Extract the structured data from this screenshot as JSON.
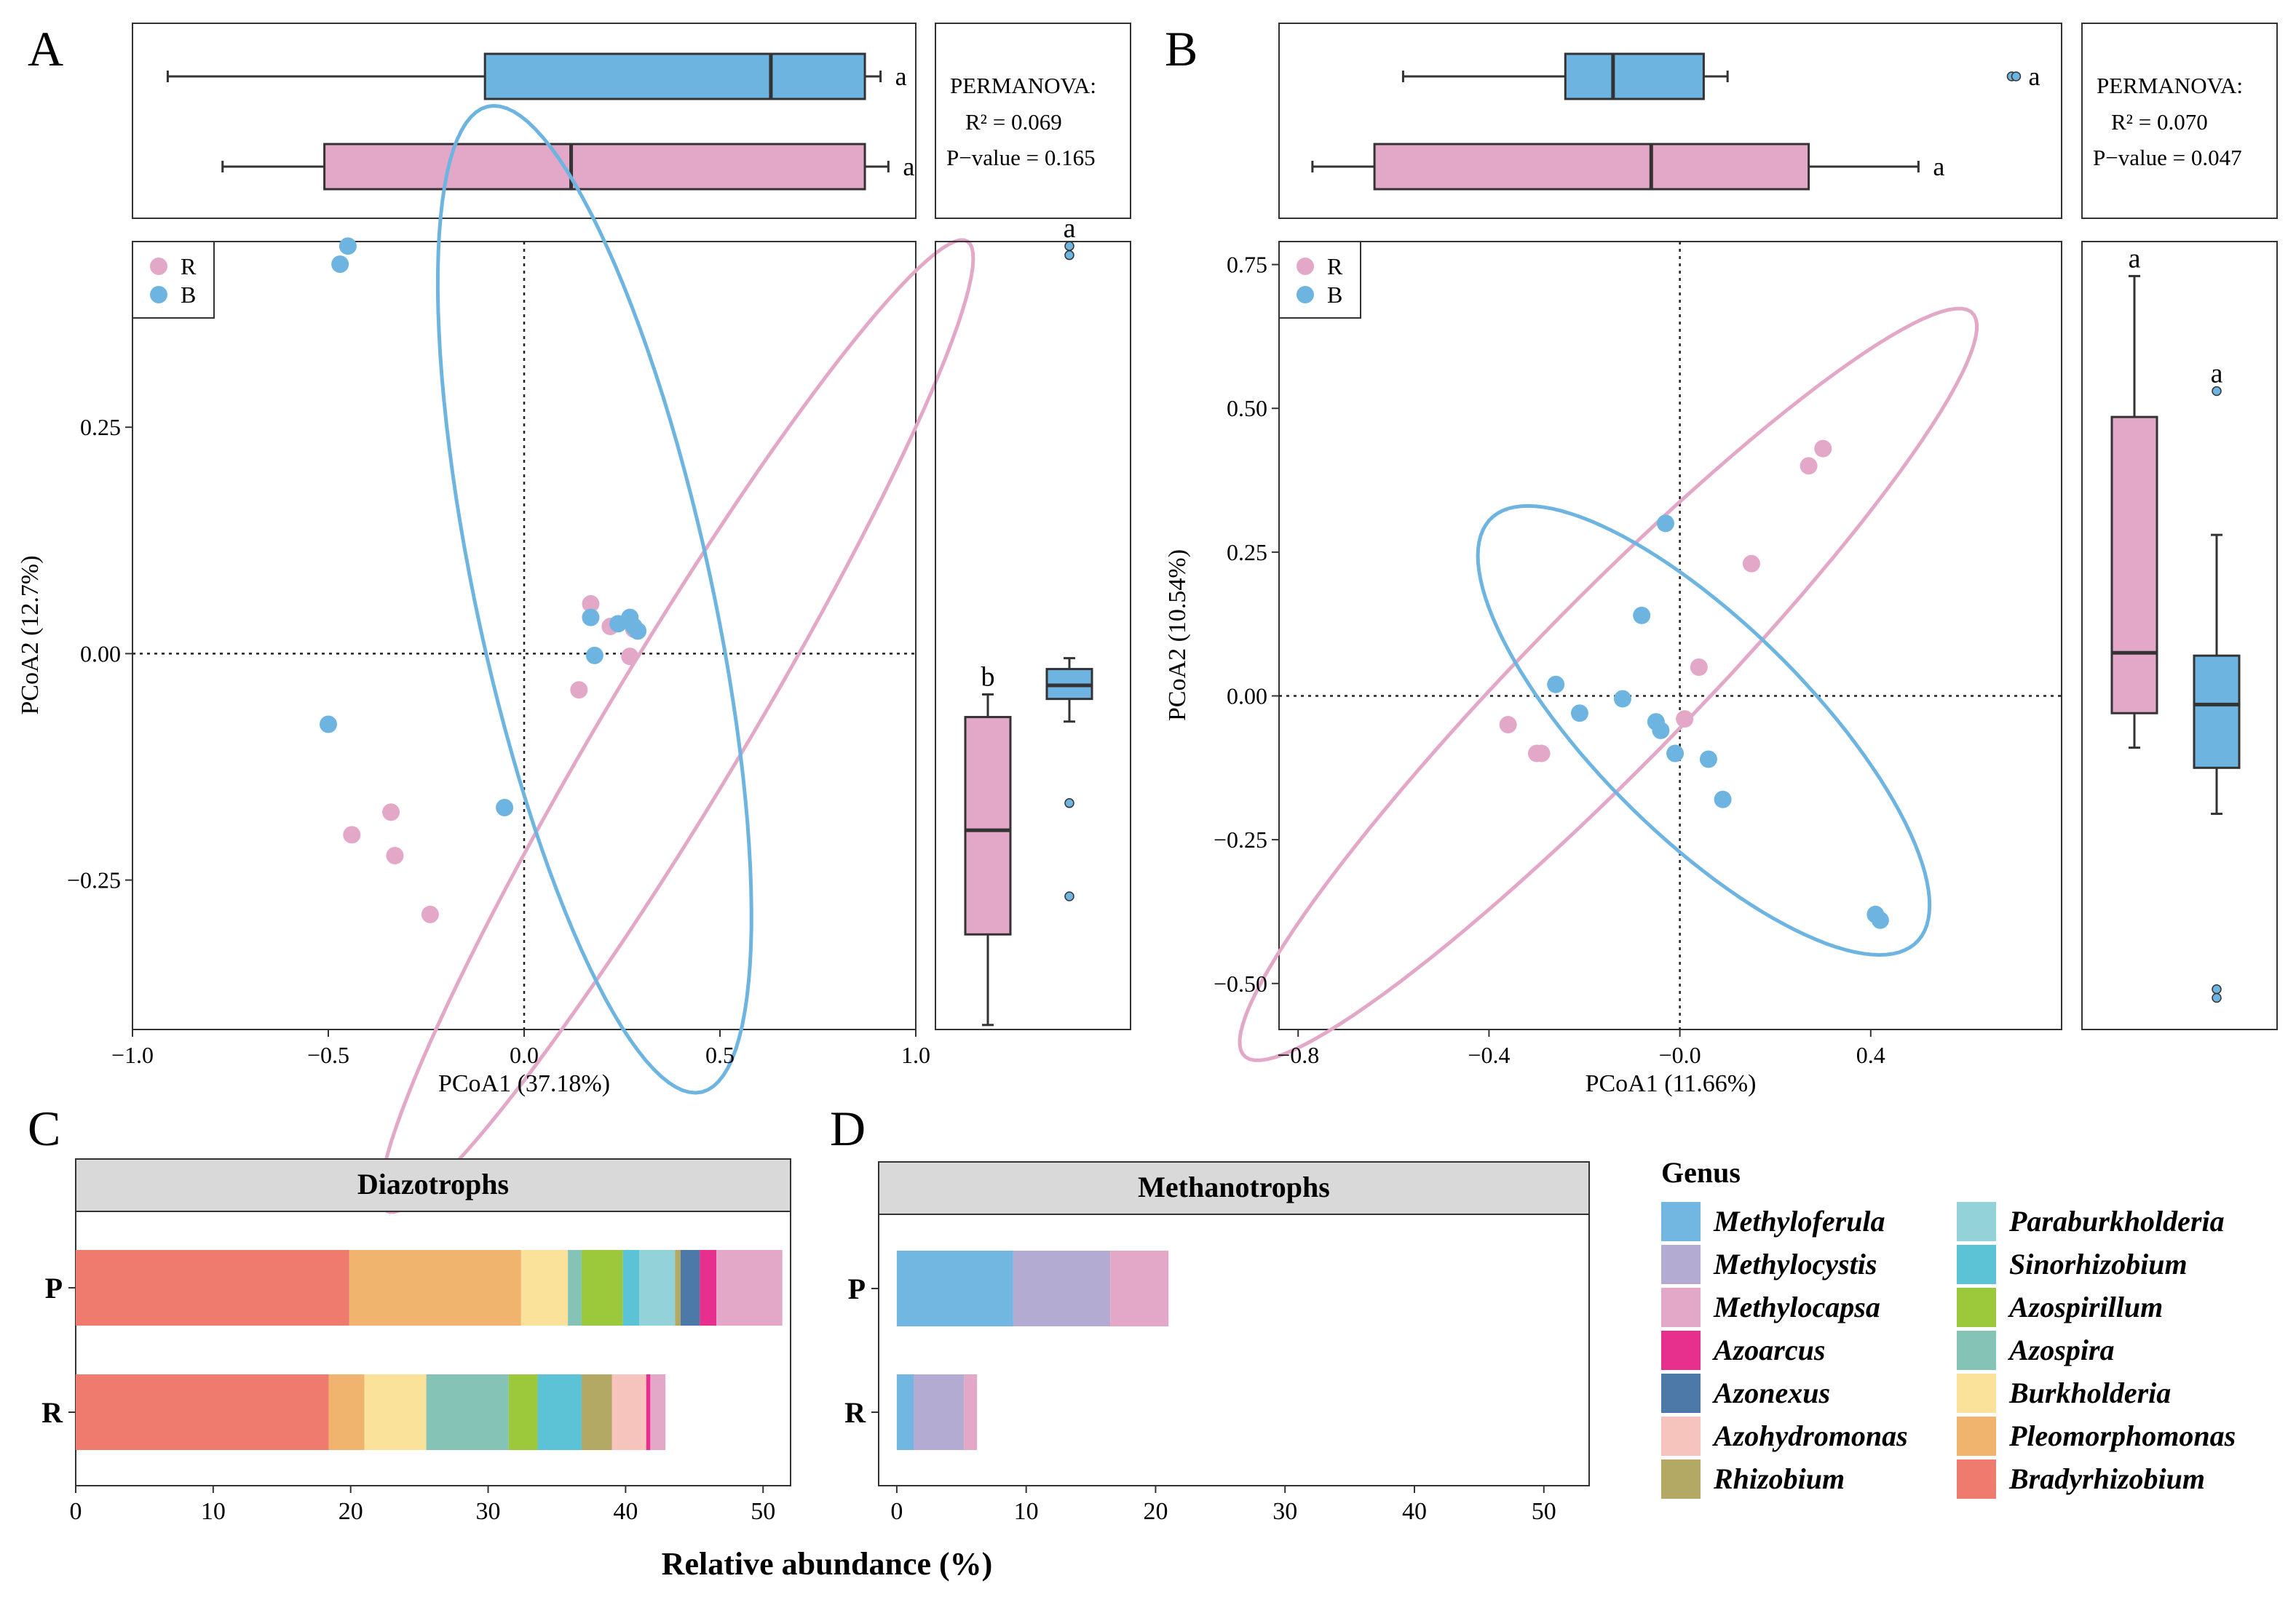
{
  "colors": {
    "R": "#e3a8c8",
    "B": "#6eb4e0",
    "box_stroke": "#333333",
    "strip_fill": "#d9d9d9"
  },
  "panels": {
    "A": {
      "letter": "A"
    },
    "B": {
      "letter": "B"
    },
    "C": {
      "letter": "C"
    },
    "D": {
      "letter": "D"
    }
  },
  "chart_data": [
    {
      "id": "A",
      "type": "scatter",
      "xlabel": "PCoA1 (37.18%)",
      "ylabel": "PCoA2 (12.7%)",
      "xlim": [
        -1.0,
        1.0
      ],
      "ylim": [
        -0.415,
        0.455
      ],
      "xticks": [
        -1.0,
        -0.5,
        0.0,
        0.5,
        1.0
      ],
      "xtick_labels": [
        "−1.0",
        "−0.5",
        "0.0",
        "0.5",
        "1.0"
      ],
      "yticks": [
        -0.25,
        0.0,
        0.25
      ],
      "ytick_labels": [
        "−0.25",
        "0.00",
        "0.25"
      ],
      "legend": [
        "R",
        "B"
      ],
      "permanova": {
        "title": "PERMANOVA:",
        "r2": "R² = 0.069",
        "p": "P−value = 0.165"
      },
      "series": [
        {
          "name": "R",
          "points": [
            [
              -0.44,
              -0.2
            ],
            [
              -0.34,
              -0.175
            ],
            [
              -0.33,
              -0.223
            ],
            [
              -0.24,
              -0.288
            ],
            [
              0.14,
              -0.04
            ],
            [
              0.17,
              0.055
            ],
            [
              0.27,
              -0.003
            ],
            [
              0.28,
              0.027
            ],
            [
              0.29,
              0.025
            ],
            [
              0.22,
              0.03
            ]
          ]
        },
        {
          "name": "B",
          "points": [
            [
              -0.45,
              0.45
            ],
            [
              -0.47,
              0.43
            ],
            [
              -0.5,
              -0.078
            ],
            [
              -0.05,
              -0.17
            ],
            [
              0.17,
              0.04
            ],
            [
              0.18,
              -0.002
            ],
            [
              0.24,
              0.033
            ],
            [
              0.27,
              0.04
            ],
            [
              0.29,
              0.025
            ],
            [
              0.28,
              0.03
            ]
          ]
        }
      ],
      "ellipses": [
        {
          "name": "R",
          "cx": 0.39,
          "cy": -0.08,
          "rx": 0.92,
          "ry": 0.12,
          "angle_deg": 35
        },
        {
          "name": "B",
          "cx": 0.18,
          "cy": 0.06,
          "rx": 0.62,
          "ry": 0.27,
          "angle_deg": -58
        }
      ],
      "top_box": {
        "groups": [
          {
            "name": "B",
            "whisker_lo": -0.91,
            "q1": -0.1,
            "median": 0.63,
            "q3": 0.87,
            "whisker_hi": 0.91,
            "letter": "a"
          },
          {
            "name": "R",
            "whisker_lo": -0.77,
            "q1": -0.51,
            "median": 0.12,
            "q3": 0.87,
            "whisker_hi": 0.93,
            "letter": "a"
          }
        ]
      },
      "side_box": {
        "groups": [
          {
            "name": "R",
            "whisker_lo": -0.41,
            "q1": -0.31,
            "median": -0.195,
            "q3": -0.07,
            "whisker_hi": -0.045,
            "outliers": [],
            "letter": "b"
          },
          {
            "name": "B",
            "whisker_lo": -0.075,
            "q1": -0.05,
            "median": -0.035,
            "q3": -0.017,
            "whisker_hi": -0.005,
            "outliers": [
              -0.165,
              -0.268,
              0.44,
              0.45
            ],
            "letter": "a"
          }
        ]
      }
    },
    {
      "id": "B",
      "type": "scatter",
      "xlabel": "PCoA1 (11.66%)",
      "ylabel": "PCoA2 (10.54%)",
      "xlim": [
        -0.84,
        0.8
      ],
      "ylim": [
        -0.58,
        0.79
      ],
      "xticks": [
        -0.8,
        -0.4,
        0.0,
        0.4
      ],
      "xtick_labels": [
        "−0.8",
        "−0.4",
        "−0.0",
        "0.4"
      ],
      "yticks": [
        -0.5,
        -0.25,
        0.0,
        0.25,
        0.5,
        0.75
      ],
      "ytick_labels": [
        "−0.50",
        "−0.25",
        "0.00",
        "0.25",
        "0.50",
        "0.75"
      ],
      "legend": [
        "R",
        "B"
      ],
      "permanova": {
        "title": "PERMANOVA:",
        "r2": "R² = 0.070",
        "p": "P−value = 0.047"
      },
      "series": [
        {
          "name": "R",
          "points": [
            [
              -0.36,
              -0.05
            ],
            [
              -0.3,
              -0.1
            ],
            [
              -0.29,
              -0.1
            ],
            [
              0.01,
              -0.04
            ],
            [
              0.04,
              0.05
            ],
            [
              0.15,
              0.23
            ],
            [
              0.27,
              0.4
            ],
            [
              0.3,
              0.43
            ]
          ]
        },
        {
          "name": "B",
          "points": [
            [
              -0.26,
              0.02
            ],
            [
              -0.21,
              -0.03
            ],
            [
              -0.12,
              -0.005
            ],
            [
              -0.08,
              0.14
            ],
            [
              -0.03,
              0.3
            ],
            [
              -0.05,
              -0.045
            ],
            [
              -0.04,
              -0.06
            ],
            [
              -0.01,
              -0.1
            ],
            [
              0.06,
              -0.11
            ],
            [
              0.09,
              -0.18
            ],
            [
              0.41,
              -0.38
            ],
            [
              0.42,
              -0.39
            ]
          ]
        }
      ],
      "ellipses": [
        {
          "name": "R",
          "cx": -0.15,
          "cy": 0.02,
          "rx": 1.0,
          "ry": 0.155,
          "angle_deg": 40
        },
        {
          "name": "B",
          "cx": 0.05,
          "cy": -0.06,
          "rx": 0.58,
          "ry": 0.2,
          "angle_deg": -38
        }
      ],
      "top_box": {
        "groups": [
          {
            "name": "B",
            "whisker_lo": -0.58,
            "q1": -0.24,
            "median": -0.14,
            "q3": 0.05,
            "whisker_hi": 0.1,
            "outliers": [
              0.7
            ],
            "letter": "a"
          },
          {
            "name": "R",
            "whisker_lo": -0.77,
            "q1": -0.64,
            "median": -0.06,
            "q3": 0.27,
            "whisker_hi": 0.5,
            "outliers": [],
            "letter": "a"
          }
        ]
      },
      "side_box": {
        "groups": [
          {
            "name": "R",
            "whisker_lo": -0.09,
            "q1": -0.03,
            "median": 0.075,
            "q3": 0.485,
            "whisker_hi": 0.73,
            "outliers": [],
            "letter": "a"
          },
          {
            "name": "B",
            "whisker_lo": -0.205,
            "q1": -0.125,
            "median": -0.015,
            "q3": 0.07,
            "whisker_hi": 0.28,
            "outliers": [
              0.53,
              -0.51,
              -0.525
            ],
            "letter": "a"
          }
        ]
      }
    },
    {
      "id": "C",
      "type": "bar",
      "title": "Diazotrophs",
      "orientation": "horizontal",
      "stacked": true,
      "categories": [
        "P",
        "R"
      ],
      "xlim": [
        0,
        52
      ],
      "xticks": [
        0,
        10,
        20,
        30,
        40,
        50
      ],
      "series": [
        {
          "name": "Bradyrhizobium",
          "values": [
            19.9,
            18.4
          ]
        },
        {
          "name": "Pleomorphomonas",
          "values": [
            12.5,
            2.6
          ]
        },
        {
          "name": "Burkholderia",
          "values": [
            3.4,
            4.5
          ]
        },
        {
          "name": "Azospira",
          "values": [
            1.0,
            6.0
          ]
        },
        {
          "name": "Azospirillum",
          "values": [
            3.0,
            2.1
          ]
        },
        {
          "name": "Sinorhizobium",
          "values": [
            1.2,
            3.2
          ]
        },
        {
          "name": "Paraburkholderia",
          "values": [
            2.6,
            0.0
          ]
        },
        {
          "name": "Rhizobium",
          "values": [
            0.4,
            2.2
          ]
        },
        {
          "name": "Azohydromonas",
          "values": [
            0.0,
            2.5
          ]
        },
        {
          "name": "Azonexus",
          "values": [
            1.4,
            0.0
          ]
        },
        {
          "name": "Azoarcus",
          "values": [
            1.2,
            0.3
          ]
        },
        {
          "name": "Methylocapsa",
          "values": [
            4.8,
            1.1
          ]
        }
      ]
    },
    {
      "id": "D",
      "type": "bar",
      "title": "Methanotrophs",
      "orientation": "horizontal",
      "stacked": true,
      "categories": [
        "P",
        "R"
      ],
      "xlim": [
        -1.4,
        53.5
      ],
      "xticks": [
        0,
        10,
        20,
        30,
        40,
        50
      ],
      "series": [
        {
          "name": "Methyloferula",
          "values": [
            9.0,
            1.3
          ]
        },
        {
          "name": "Methylocystis",
          "values": [
            7.5,
            3.9
          ]
        },
        {
          "name": "Methylocapsa",
          "values": [
            4.5,
            1.0
          ]
        }
      ]
    }
  ],
  "shared_xlabel": "Relative abundance (%)",
  "genus_legend": {
    "title": "Genus",
    "items": [
      {
        "name": "Methyloferula",
        "color": "#72b6e2"
      },
      {
        "name": "Methylocystis",
        "color": "#b3abd2"
      },
      {
        "name": "Methylocapsa",
        "color": "#e3a8c8"
      },
      {
        "name": "Azoarcus",
        "color": "#e7308d"
      },
      {
        "name": "Azonexus",
        "color": "#4c79a8"
      },
      {
        "name": "Azohydromonas",
        "color": "#f6c4bc"
      },
      {
        "name": "Rhizobium",
        "color": "#b4a865"
      },
      {
        "name": "Paraburkholderia",
        "color": "#94d2da"
      },
      {
        "name": "Sinorhizobium",
        "color": "#5cc2d6"
      },
      {
        "name": "Azospirillum",
        "color": "#9cc93c"
      },
      {
        "name": "Azospira",
        "color": "#86c3b7"
      },
      {
        "name": "Burkholderia",
        "color": "#fae29a"
      },
      {
        "name": "Pleomorphomonas",
        "color": "#f1b46e"
      },
      {
        "name": "Bradyrhizobium",
        "color": "#ee7b6d"
      }
    ]
  }
}
